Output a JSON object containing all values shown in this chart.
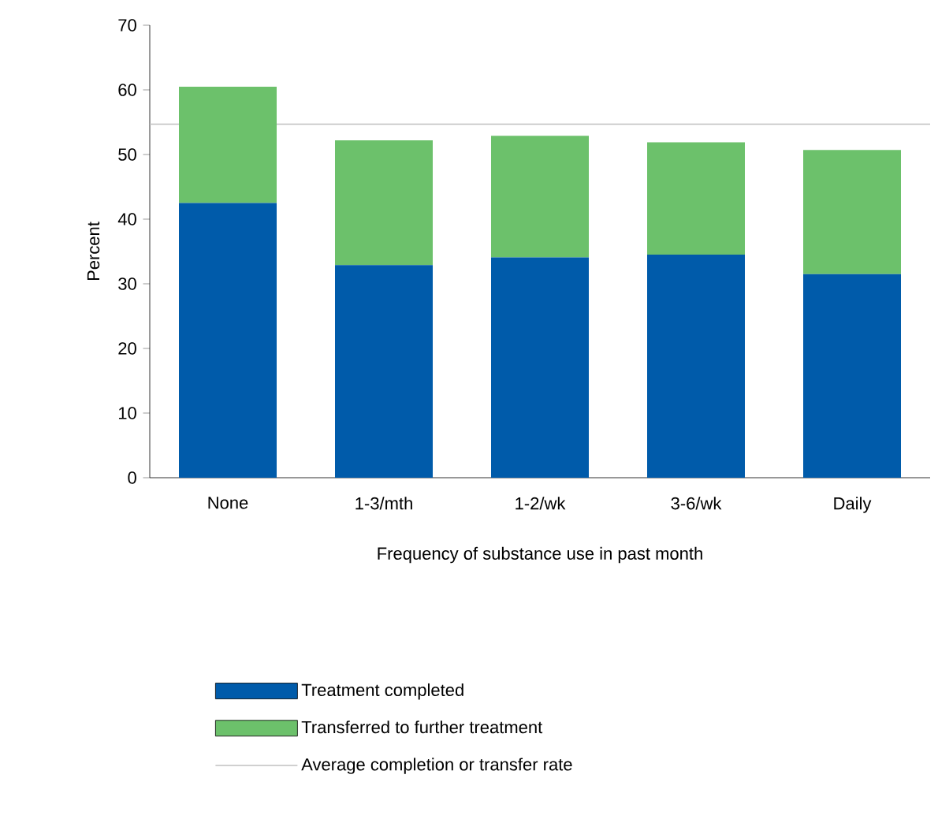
{
  "chart_data": {
    "type": "bar",
    "stacked": true,
    "xlabel": "Frequency of substance use in past month",
    "ylabel": "Percent",
    "categories": [
      "None",
      "1-3/mth",
      "1-2/wk",
      "3-6/wk",
      "Daily"
    ],
    "series": [
      {
        "name": "Treatment completed",
        "color": "#005baa",
        "values": [
          42.5,
          32.9,
          34.1,
          34.5,
          31.5
        ]
      },
      {
        "name": "Transferred to further treatment",
        "color": "#6cc16b",
        "values": [
          18.0,
          19.3,
          18.8,
          17.4,
          19.2
        ]
      }
    ],
    "ref_lines": [
      {
        "axis": "y",
        "value": 54.7,
        "label": "Average completion or transfer rate",
        "color": "#c0c0c0"
      }
    ],
    "ylim": [
      0,
      70
    ],
    "yticks": [
      0,
      10,
      20,
      30,
      40,
      50,
      60,
      70
    ],
    "grid": false,
    "legend": "bottom"
  }
}
